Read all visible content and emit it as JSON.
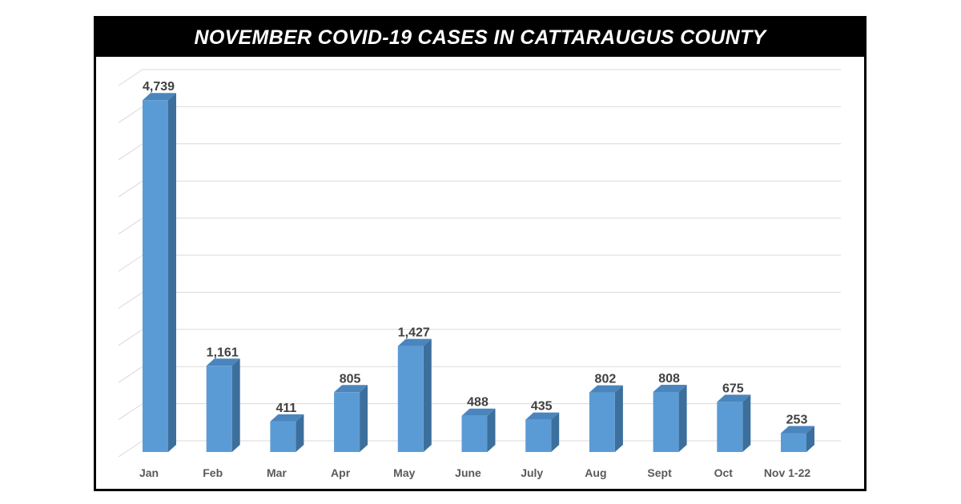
{
  "chart_data": {
    "type": "bar",
    "title": "NOVEMBER COVID-19 CASES IN CATTARAUGUS COUNTY",
    "categories": [
      "Jan",
      "Feb",
      "Mar",
      "Apr",
      "May",
      "June",
      "July",
      "Aug",
      "Sept",
      "Oct",
      "Nov 1-22"
    ],
    "values": [
      4739,
      1161,
      411,
      805,
      1427,
      488,
      435,
      802,
      808,
      675,
      253
    ],
    "data_labels": [
      "4,739",
      "1,161",
      "411",
      "805",
      "1,427",
      "488",
      "435",
      "802",
      "808",
      "675",
      "253"
    ],
    "xlabel": "",
    "ylabel": "",
    "ylim": [
      0,
      5000
    ],
    "grid_step": 500,
    "grid": true,
    "three_d": true,
    "colors": {
      "bar_front": "#5b9bd5",
      "bar_side": "#3d6f9c",
      "bar_top": "#4a85bd",
      "title_bg": "#000000",
      "title_text": "#ffffff",
      "grid": "#d9d9d9",
      "label": "#404040"
    }
  }
}
